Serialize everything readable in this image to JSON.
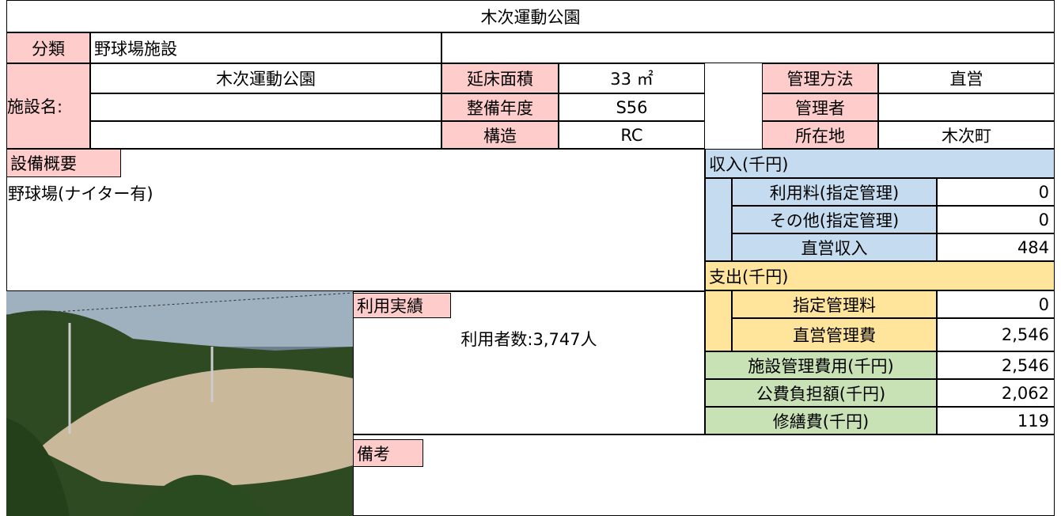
{
  "header": {
    "title": "木次運動公園"
  },
  "classification": {
    "label": "分類",
    "value": "野球場施設"
  },
  "facility": {
    "label": "施設名:",
    "name": "木次運動公園"
  },
  "details": [
    {
      "label": "延床面積",
      "value": "33 ㎡",
      "label2": "管理方法",
      "value2": "直営"
    },
    {
      "label": "整備年度",
      "value": "S56",
      "label2": "管理者"
    },
    {
      "label": "構造",
      "value": "RC",
      "label2": "所在地",
      "value2": "木次町"
    }
  ],
  "equipment": {
    "label": "設備概要",
    "text": "野球場(ナイター有)"
  },
  "income": {
    "title": "収入(千円)",
    "rows": [
      {
        "label": "利用料(指定管理)",
        "value": "0"
      },
      {
        "label": "その他(指定管理)",
        "value": "0"
      },
      {
        "label": "直営収入",
        "value": "484"
      }
    ]
  },
  "expense": {
    "title": "支出(千円)",
    "rows": [
      {
        "label": "指定管理料",
        "value": "0"
      },
      {
        "label": "直営管理費",
        "value": "2,546"
      }
    ]
  },
  "totals": [
    {
      "label": "施設管理費用(千円)",
      "value": "2,546"
    },
    {
      "label": "公費負担額(千円)",
      "value": "2,062"
    },
    {
      "label": "修繕費(千円)",
      "value": "119"
    }
  ],
  "usage": {
    "label": "利用実績",
    "text": "利用者数:3,747人"
  },
  "remarks": {
    "label": "備考"
  }
}
